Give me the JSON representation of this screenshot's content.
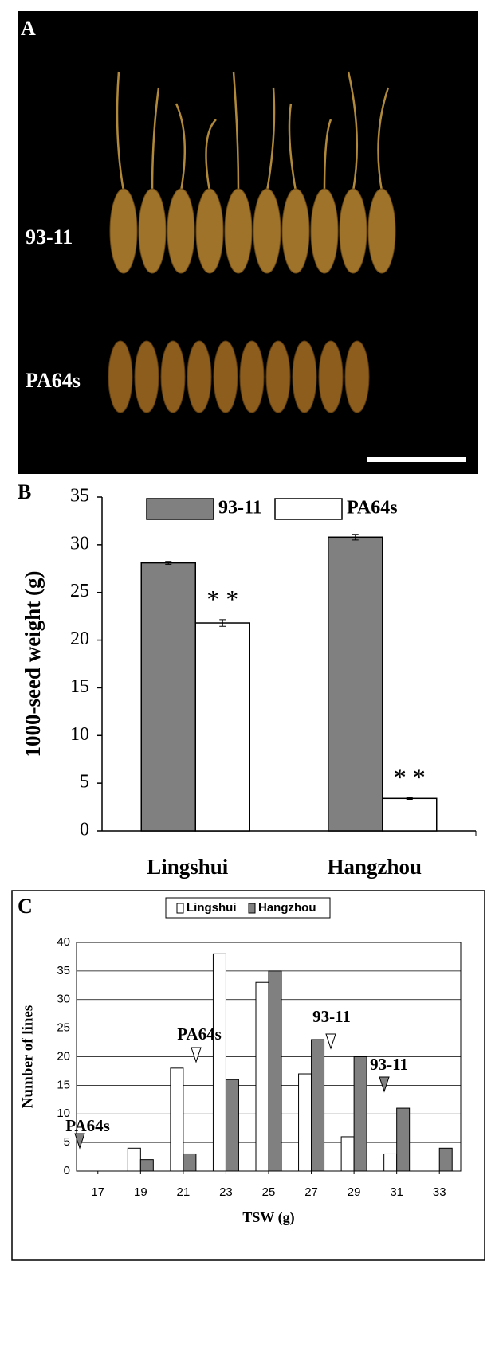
{
  "panel_a": {
    "label": "A",
    "rows": [
      "93-11",
      "PA64s"
    ]
  },
  "chart_data": [
    {
      "type": "bar",
      "panel_label": "B",
      "ylabel": "1000-seed weight (g)",
      "categories": [
        "Lingshui",
        "Hangzhou"
      ],
      "series": [
        {
          "name": "93-11",
          "color": "#808080",
          "values": [
            28.1,
            30.8
          ],
          "errors": [
            0.15,
            0.3
          ]
        },
        {
          "name": "PA64s",
          "color": "#ffffff",
          "values": [
            21.8,
            3.4
          ],
          "errors": [
            0.35,
            0.1
          ]
        }
      ],
      "annotations": [
        "* *",
        "* *"
      ],
      "ylim": [
        0,
        35
      ],
      "yticks": [
        0,
        5,
        10,
        15,
        20,
        25,
        30,
        35
      ]
    },
    {
      "type": "bar",
      "panel_label": "C",
      "xlabel": "TSW (g)",
      "ylabel": "Number of lines",
      "x": [
        17,
        19,
        21,
        23,
        25,
        27,
        29,
        31,
        33
      ],
      "series": [
        {
          "name": "Lingshui",
          "color": "#ffffff",
          "values": [
            0,
            4,
            18,
            38,
            33,
            17,
            6,
            3,
            0
          ]
        },
        {
          "name": "Hangzhou",
          "color": "#808080",
          "values": [
            0,
            2,
            3,
            16,
            35,
            23,
            20,
            11,
            4
          ]
        }
      ],
      "annotations": [
        "PA64s",
        "PA64s",
        "93-11",
        "93-11"
      ],
      "xlim": [
        16,
        34
      ],
      "xticks": [
        17,
        19,
        21,
        23,
        25,
        27,
        29,
        31,
        33
      ],
      "ylim": [
        0,
        40
      ],
      "yticks": [
        0,
        5,
        10,
        15,
        20,
        25,
        30,
        35,
        40
      ],
      "grid": true
    }
  ]
}
